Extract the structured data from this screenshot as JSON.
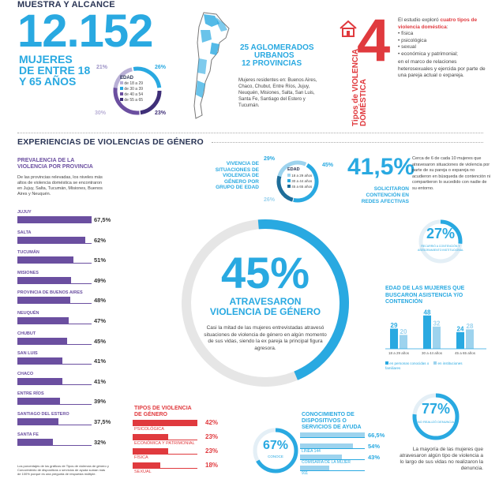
{
  "header": {
    "section_title": "MUESTRA Y ALCANCE",
    "total_women": "12.152",
    "women_line1": "MUJERES",
    "women_line2": "DE ENTRE 18",
    "women_line3": "Y 65 AÑOS"
  },
  "age_donut": {
    "title": "EDAD",
    "legend": [
      "de 18 a 29",
      "de 30 a 39",
      "de 40 a 54",
      "de 55 a 65"
    ],
    "labels": [
      "21%",
      "26%",
      "30%",
      "23%"
    ],
    "colors": [
      "#b9b0d6",
      "#29a9e1",
      "#6b4fa0",
      "#3f2f78"
    ]
  },
  "urban": {
    "line1": "25 AGLOMERADOS",
    "line2": "URBANOS",
    "line3": "12 PROVINCIAS",
    "description": "Mujeres residentes en: Buenos Aires, Chaco, Chubut, Entre Ríos, Jujuy, Neuquén, Misiones, Salta, San Luis, Santa Fe, Santiago del Estero y Tucumán."
  },
  "types": {
    "number": "4",
    "vertical_text": "Tipos de VIOLENCIA DOMÉSTICA",
    "intro_plain": "El estudio exploró",
    "intro_highlight": "cuatro tipos de violencia doméstica",
    "list": [
      "física",
      "psicológica",
      "sexual",
      "económica y patrimonial;"
    ],
    "outro": "en el marco de relaciones heterosexuales y ejercida por parte de una pareja actual o expareja."
  },
  "experiencias_title": "EXPERIENCIAS DE VIOLENCIAS DE GÉNERO",
  "province": {
    "title": "PREVALENCIA DE LA VIOLENCIA POR PROVINCIA",
    "note": "De las provincias relevadas, los niveles más altos de violencia doméstica se encontraron en Jujuy, Salta, Tucumán, Misiones, Buenos Aires y Neuquén.",
    "items": [
      {
        "label": "JUJUY",
        "value": "67,5%",
        "num": 67.5
      },
      {
        "label": "SALTA",
        "value": "62%",
        "num": 62
      },
      {
        "label": "TUCUMÁN",
        "value": "51%",
        "num": 51
      },
      {
        "label": "MISIONES",
        "value": "49%",
        "num": 49
      },
      {
        "label": "PROVINCIA DE BUENOS AIRES",
        "value": "48%",
        "num": 48
      },
      {
        "label": "NEUQUÉN",
        "value": "47%",
        "num": 47
      },
      {
        "label": "CHUBUT",
        "value": "45%",
        "num": 45
      },
      {
        "label": "SAN LUIS",
        "value": "41%",
        "num": 41
      },
      {
        "label": "CHACO",
        "value": "41%",
        "num": 41
      },
      {
        "label": "ENTRE RÍOS",
        "value": "39%",
        "num": 39
      },
      {
        "label": "SANTIAGO DEL ESTERO",
        "value": "37,5%",
        "num": 37.5
      },
      {
        "label": "SANTA FE",
        "value": "32%",
        "num": 32
      }
    ],
    "footnote": "Los porcentajes de los gráficos de Tipos de violencia de género y Conocimiento de dispositivos o servicios de ayuda suman más de 100% porque es una pregunta de respuesta múltiple."
  },
  "vivencia": {
    "title": "VIVENCIA DE SITUACIONES DE VIOLENCIA DE GÉNERO POR GRUPO DE EDAD",
    "donut_title": "EDAD",
    "legend": [
      "18 a 29 años",
      "30 a 44 años",
      "45 a 65 años"
    ],
    "labels": [
      "29%",
      "45%",
      "26%"
    ]
  },
  "contencion": {
    "value": "41,5%",
    "label": "SOLICITARON CONTENCIÓN EN REDES AFECTIVAS",
    "text": "Cerca de 6 de cada 10 mujeres que atravesaron situaciones de violencia por parte de su pareja o expareja no acudieron en búsqueda de contención ni compartieron lo sucedido con nadie de su entorno."
  },
  "asesoramiento": {
    "value": "27%",
    "label": "RECURRIÓ A CONTENCIÓN Y ASESORAMIENTO INSTITUCIONAL"
  },
  "main_stat": {
    "value": "45%",
    "line1": "ATRAVESARON",
    "line2": "VIOLENCIA DE GÉNERO",
    "text": "Casi la mitad de las mujeres entrevistadas atravesó situaciones de violencia de género en algún momento de sus vidas, siendo la ex pareja la principal figura agresora."
  },
  "tipos": {
    "title": "TIPOS DE VIOLENCIA DE GÉNERO",
    "items": [
      {
        "label": "PSICOLÓGICA",
        "value": "42%",
        "num": 42
      },
      {
        "label": "ECONÓMICA Y PATRIMONIAL",
        "value": "23%",
        "num": 23
      },
      {
        "label": "FÍSICA",
        "value": "23%",
        "num": 23
      },
      {
        "label": "SEXUAL",
        "value": "18%",
        "num": 18
      }
    ]
  },
  "conocimiento": {
    "title": "CONOCIMIENTO DE DISPOSITIVOS O SERVICIOS DE AYUDA",
    "donut_value": "67%",
    "donut_label": "CONOCE",
    "items": [
      {
        "label": "",
        "value": "66,5%",
        "num": 66.5
      },
      {
        "label": "LÍNEA 144",
        "value": "54%",
        "num": 54
      },
      {
        "label": "COMISARÍA DE LA MUJER",
        "value": "43%",
        "num": 43
      },
      {
        "label": "911",
        "value": "",
        "num": 30
      }
    ]
  },
  "edad_asistencia": {
    "title": "EDAD DE LAS MUJERES QUE BUSCARON ASISTENCIA Y/O CONTENCIÓN",
    "groups": [
      "18 a 29 años",
      "30 a 44 años",
      "45 a 65 años"
    ],
    "series": [
      {
        "name": "en personas conocidas o familiares",
        "values": [
          29,
          48,
          24
        ],
        "color": "#29a9e1"
      },
      {
        "name": "en instituciones",
        "values": [
          20,
          32,
          28
        ],
        "color": "#9dd3ee"
      }
    ]
  },
  "no_denuncia": {
    "value": "77%",
    "label": "NO REALIZÓ DENUNCIA",
    "text": "La mayoría de las mujeres que atravesaron algún tipo de violencia a lo largo de sus vidas no realizaron la denuncia."
  }
}
